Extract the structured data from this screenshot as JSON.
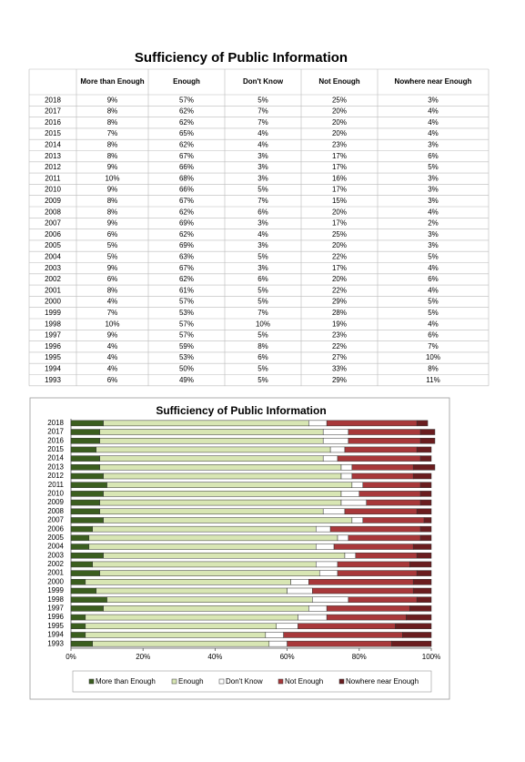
{
  "title": "Sufficiency of Public Information",
  "table": {
    "header": [
      "More than Enough",
      "Enough",
      "Don't Know",
      "Not Enough",
      "Nowhere near Enough"
    ],
    "rows": [
      [
        "2018",
        "9%",
        "57%",
        "5%",
        "25%",
        "3%"
      ],
      [
        "2017",
        "8%",
        "62%",
        "7%",
        "20%",
        "4%"
      ],
      [
        "2016",
        "8%",
        "62%",
        "7%",
        "20%",
        "4%"
      ],
      [
        "2015",
        "7%",
        "65%",
        "4%",
        "20%",
        "4%"
      ],
      [
        "2014",
        "8%",
        "62%",
        "4%",
        "23%",
        "3%"
      ],
      [
        "2013",
        "8%",
        "67%",
        "3%",
        "17%",
        "6%"
      ],
      [
        "2012",
        "9%",
        "66%",
        "3%",
        "17%",
        "5%"
      ],
      [
        "2011",
        "10%",
        "68%",
        "3%",
        "16%",
        "3%"
      ],
      [
        "2010",
        "9%",
        "66%",
        "5%",
        "17%",
        "3%"
      ],
      [
        "2009",
        "8%",
        "67%",
        "7%",
        "15%",
        "3%"
      ],
      [
        "2008",
        "8%",
        "62%",
        "6%",
        "20%",
        "4%"
      ],
      [
        "2007",
        "9%",
        "69%",
        "3%",
        "17%",
        "2%"
      ],
      [
        "2006",
        "6%",
        "62%",
        "4%",
        "25%",
        "3%"
      ],
      [
        "2005",
        "5%",
        "69%",
        "3%",
        "20%",
        "3%"
      ],
      [
        "2004",
        "5%",
        "63%",
        "5%",
        "22%",
        "5%"
      ],
      [
        "2003",
        "9%",
        "67%",
        "3%",
        "17%",
        "4%"
      ],
      [
        "2002",
        "6%",
        "62%",
        "6%",
        "20%",
        "6%"
      ],
      [
        "2001",
        "8%",
        "61%",
        "5%",
        "22%",
        "4%"
      ],
      [
        "2000",
        "4%",
        "57%",
        "5%",
        "29%",
        "5%"
      ],
      [
        "1999",
        "7%",
        "53%",
        "7%",
        "28%",
        "5%"
      ],
      [
        "1998",
        "10%",
        "57%",
        "10%",
        "19%",
        "4%"
      ],
      [
        "1997",
        "9%",
        "57%",
        "5%",
        "23%",
        "6%"
      ],
      [
        "1996",
        "4%",
        "59%",
        "8%",
        "22%",
        "7%"
      ],
      [
        "1995",
        "4%",
        "53%",
        "6%",
        "27%",
        "10%"
      ],
      [
        "1994",
        "4%",
        "50%",
        "5%",
        "33%",
        "8%"
      ],
      [
        "1993",
        "6%",
        "49%",
        "5%",
        "29%",
        "11%"
      ]
    ]
  },
  "chart_data": {
    "type": "stacked-bar-horizontal",
    "title": "Sufficiency of Public Information",
    "categories": [
      "2018",
      "2017",
      "2016",
      "2015",
      "2014",
      "2013",
      "2012",
      "2011",
      "2010",
      "2009",
      "2008",
      "2007",
      "2006",
      "2005",
      "2004",
      "2003",
      "2002",
      "2001",
      "2000",
      "1999",
      "1998",
      "1997",
      "1996",
      "1995",
      "1994",
      "1993"
    ],
    "series": [
      {
        "name": "More than Enough",
        "color": "#3b5e1f",
        "values": [
          9,
          8,
          8,
          7,
          8,
          8,
          9,
          10,
          9,
          8,
          8,
          9,
          6,
          5,
          5,
          9,
          6,
          8,
          4,
          7,
          10,
          9,
          4,
          4,
          4,
          6
        ]
      },
      {
        "name": "Enough",
        "color": "#d8e6b4",
        "values": [
          57,
          62,
          62,
          65,
          62,
          67,
          66,
          68,
          66,
          67,
          62,
          69,
          62,
          69,
          63,
          67,
          62,
          61,
          57,
          53,
          57,
          57,
          59,
          53,
          50,
          49
        ]
      },
      {
        "name": "Don't Know",
        "color": "#ffffff",
        "values": [
          5,
          7,
          7,
          4,
          4,
          3,
          3,
          3,
          5,
          7,
          6,
          3,
          4,
          3,
          5,
          3,
          6,
          5,
          5,
          7,
          10,
          5,
          8,
          6,
          5,
          5
        ]
      },
      {
        "name": "Not Enough",
        "color": "#a8383a",
        "values": [
          25,
          20,
          20,
          20,
          23,
          17,
          17,
          16,
          17,
          15,
          20,
          17,
          25,
          20,
          22,
          17,
          20,
          22,
          29,
          28,
          19,
          23,
          22,
          27,
          33,
          29
        ]
      },
      {
        "name": "Nowhere near Enough",
        "color": "#6a1d1f",
        "values": [
          3,
          4,
          4,
          4,
          3,
          6,
          5,
          3,
          3,
          3,
          4,
          2,
          3,
          3,
          5,
          4,
          6,
          4,
          5,
          5,
          4,
          6,
          7,
          10,
          8,
          11
        ]
      }
    ],
    "xlim": [
      0,
      100
    ],
    "xticks": [
      {
        "value": 0,
        "label": "0%"
      },
      {
        "value": 20,
        "label": "20%"
      },
      {
        "value": 40,
        "label": "40%"
      },
      {
        "value": 60,
        "label": "60%"
      },
      {
        "value": 80,
        "label": "80%"
      },
      {
        "value": 100,
        "label": "100%"
      }
    ],
    "legend": "bottom"
  }
}
